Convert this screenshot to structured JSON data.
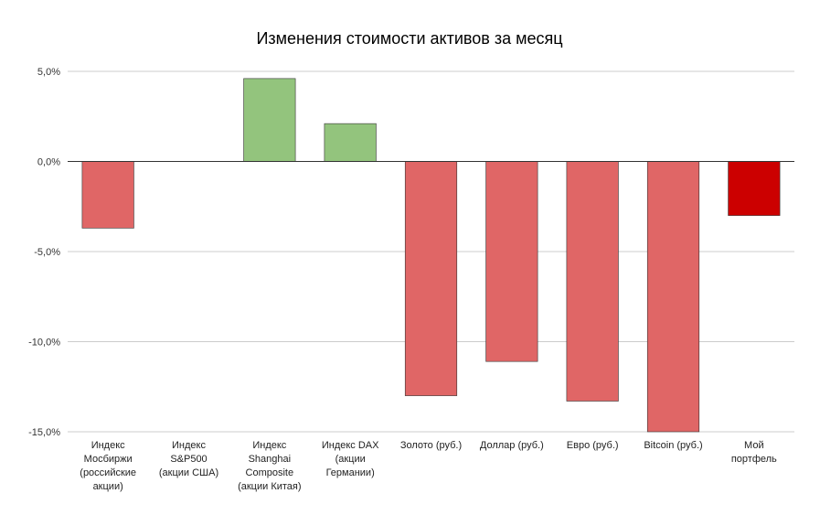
{
  "chart_data": {
    "type": "bar",
    "title": "Изменения стоимости активов за месяц",
    "xlabel": "",
    "ylabel": "",
    "ylim": [
      -15,
      5
    ],
    "y_ticks": [
      "5,0%",
      "0,0%",
      "-5,0%",
      "-10,0%",
      "-15,0%"
    ],
    "grid": true,
    "categories": [
      [
        "Индекс",
        "Мосбиржи",
        "(российские",
        "акции)"
      ],
      [
        "Индекс",
        "S&P500",
        "(акции США)"
      ],
      [
        "Индекс",
        "Shanghai",
        "Composite",
        "(акции Китая)"
      ],
      [
        "Индекс DAX",
        "(акции",
        "Германии)"
      ],
      [
        "Золото (руб.)"
      ],
      [
        "Доллар (руб.)"
      ],
      [
        "Евро (руб.)"
      ],
      [
        "Bitcoin (руб.)"
      ],
      [
        "Мой",
        "портфель"
      ]
    ],
    "values": [
      -3.7,
      0,
      4.6,
      2.1,
      -13.0,
      -11.1,
      -13.3,
      -15.0,
      -3.0
    ],
    "colors": {
      "negative": "#e06666",
      "positive": "#93c47d",
      "portfolio": "#cc0000"
    }
  }
}
